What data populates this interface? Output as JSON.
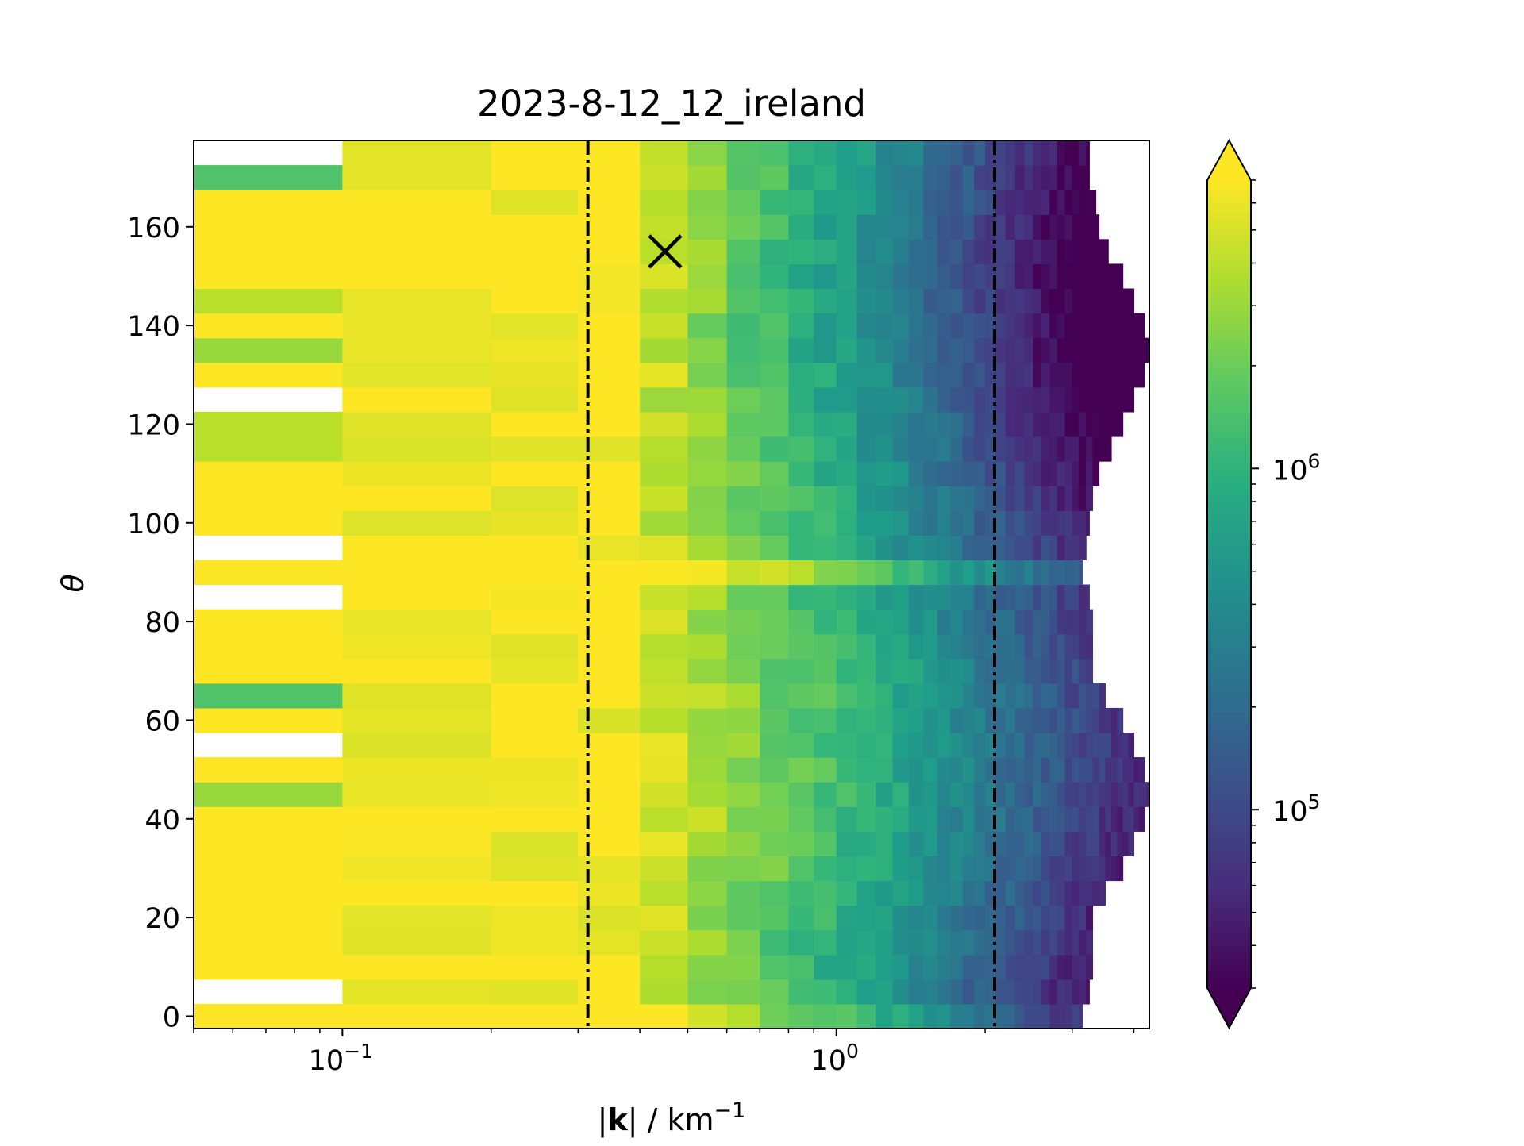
{
  "chart_data": {
    "type": "heatmap",
    "title": "2023-8-12_12_ireland",
    "xlabel_prefix": "|",
    "xlabel_bold": "k",
    "xlabel_suffix": "| / km",
    "xlabel_sup": "−1",
    "ylabel": "θ",
    "x_scale": "log",
    "xlim": [
      0.05,
      4.3
    ],
    "ylim": [
      -2.5,
      177.5
    ],
    "x_ticks": [
      {
        "value": 0.1,
        "base": "10",
        "exp": "−1"
      },
      {
        "value": 1,
        "base": "10",
        "exp": "0"
      }
    ],
    "y_ticks": [
      0,
      20,
      40,
      60,
      80,
      100,
      120,
      140,
      160
    ],
    "colorbar": {
      "scale": "log",
      "colormap": "viridis",
      "vmin": 30000,
      "vmax": 7000000,
      "extend": "both",
      "ticks": [
        {
          "value": 100000,
          "base": "10",
          "exp": "5"
        },
        {
          "value": 1000000,
          "base": "10",
          "exp": "6"
        }
      ]
    },
    "vlines": [
      {
        "x": 0.314,
        "style": "dash-dot",
        "color": "#000000"
      },
      {
        "x": 2.09,
        "style": "dash-dot",
        "color": "#000000"
      }
    ],
    "marker": {
      "x": 0.45,
      "y": 155,
      "symbol": "x",
      "color": "#000000"
    },
    "x_edges": [
      0.05,
      0.1,
      0.2,
      0.3,
      0.4,
      0.5,
      0.6,
      0.7,
      0.8,
      0.9,
      1.0,
      1.1,
      1.2,
      1.3,
      1.4,
      1.5,
      1.6,
      1.7,
      1.8,
      1.9,
      2.0,
      2.1,
      2.2,
      2.3,
      2.4,
      2.5,
      2.6,
      2.7,
      2.8,
      2.9,
      3.0,
      3.1,
      3.2,
      3.3,
      3.4,
      3.5,
      3.6,
      3.7,
      3.8,
      3.9,
      4.0,
      4.1,
      4.2,
      4.3
    ],
    "y_centers": [
      0,
      5,
      10,
      15,
      20,
      25,
      30,
      35,
      40,
      45,
      50,
      55,
      60,
      65,
      70,
      75,
      80,
      85,
      90,
      95,
      100,
      105,
      110,
      115,
      120,
      125,
      130,
      135,
      140,
      145,
      150,
      155,
      160,
      165,
      170,
      175
    ],
    "x_extent": [
      3.15,
      3.25,
      3.3,
      3.3,
      3.3,
      3.5,
      3.8,
      4.0,
      4.2,
      4.3,
      4.2,
      4.0,
      3.8,
      3.5,
      3.3,
      3.3,
      3.3,
      3.25,
      3.15,
      3.2,
      3.25,
      3.3,
      3.4,
      3.6,
      3.8,
      4.0,
      4.2,
      4.3,
      4.2,
      4.0,
      3.8,
      3.55,
      3.4,
      3.35,
      3.25,
      3.25
    ],
    "first_col_values": [
      7000000,
      null,
      7000000,
      7000000,
      7000000,
      7000000,
      7000000,
      7000000,
      7000000,
      3000000,
      7000000,
      null,
      7000000,
      1500000,
      7000000,
      7000000,
      7000000,
      null,
      7000000,
      null,
      7000000,
      7000000,
      7000000,
      4000000,
      4000000,
      null,
      7000000,
      3000000,
      7000000,
      4000000,
      7000000,
      7000000,
      7000000,
      7000000,
      1500000,
      null
    ]
  }
}
